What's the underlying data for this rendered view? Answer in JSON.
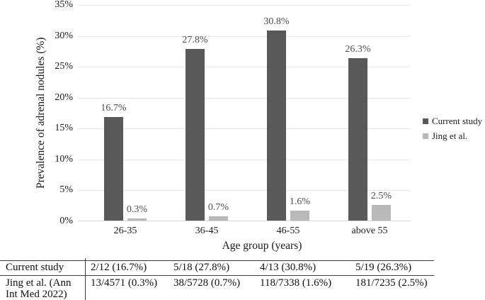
{
  "chart_data": {
    "type": "bar",
    "categories": [
      "26-35",
      "36-45",
      "46-55",
      "above 55"
    ],
    "series": [
      {
        "name": "Current study",
        "color": "#595959",
        "values": [
          16.7,
          27.8,
          30.8,
          26.3
        ],
        "labels": [
          "16.7%",
          "27.8%",
          "30.8%",
          "26.3%"
        ]
      },
      {
        "name": "Jing et al.",
        "color": "#b9b9b9",
        "values": [
          0.3,
          0.7,
          1.6,
          2.5
        ],
        "labels": [
          "0.3%",
          "0.7%",
          "1.6%",
          "2.5%"
        ]
      }
    ],
    "title": "",
    "xlabel": "Age group (years)",
    "ylabel": "Prevalence of adrenal nodules (%)",
    "ylim": [
      0,
      35
    ],
    "yticks": [
      {
        "value": 0,
        "label": "0%"
      },
      {
        "value": 5,
        "label": "5%"
      },
      {
        "value": 10,
        "label": "10%"
      },
      {
        "value": 15,
        "label": "15%"
      },
      {
        "value": 20,
        "label": "20%"
      },
      {
        "value": 25,
        "label": "25%"
      },
      {
        "value": 30,
        "label": "30%"
      },
      {
        "value": 35,
        "label": "35%"
      }
    ],
    "grid": true,
    "legend_position": "right"
  },
  "table": {
    "rows": [
      {
        "label": "Current study",
        "cells": [
          "2/12 (16.7%)",
          "5/18 (27.8%)",
          "4/13 (30.8%)",
          "5/19 (26.3%)"
        ]
      },
      {
        "label": "Jing et al. (Ann Int Med 2022)",
        "cells": [
          "13/4571 (0.3%)",
          "38/5728 (0.7%)",
          "118/7338 (1.6%)",
          "181/7235 (2.5%)"
        ]
      }
    ]
  },
  "colors": {
    "gridline": "#e7e7e7",
    "axis_line": "#d6d6d6",
    "data_label": "#4d4d4d",
    "table_rule": "#3a3a3a"
  }
}
